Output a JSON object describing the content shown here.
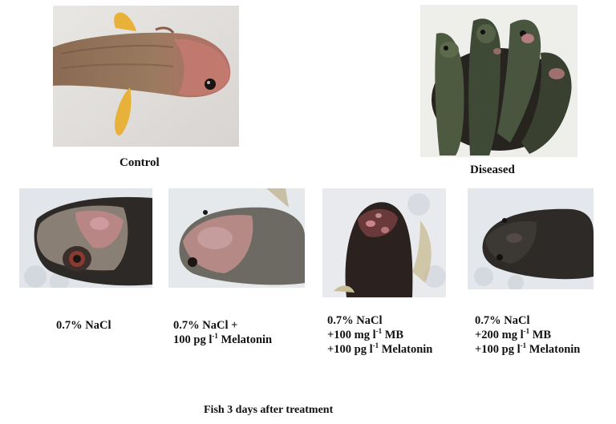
{
  "top": {
    "control": {
      "label": "Control"
    },
    "diseased": {
      "label": "Diseased"
    }
  },
  "treatments": [
    {
      "lines": [
        {
          "pre": "0.7% NaCl",
          "sup": "",
          "post": ""
        }
      ]
    },
    {
      "lines": [
        {
          "pre": "0.7% NaCl +",
          "sup": "",
          "post": ""
        },
        {
          "pre": "100 pg l",
          "sup": "-1",
          "post": " Melatonin"
        }
      ]
    },
    {
      "lines": [
        {
          "pre": "0.7% NaCl",
          "sup": "",
          "post": ""
        },
        {
          "pre": "+100 mg l",
          "sup": "-1",
          "post": " MB"
        },
        {
          "pre": "+100 pg l",
          "sup": "-1",
          "post": " Melatonin"
        }
      ]
    },
    {
      "lines": [
        {
          "pre": "0.7% NaCl",
          "sup": "",
          "post": ""
        },
        {
          "pre": "+200 mg l",
          "sup": "-1",
          "post": " MB"
        },
        {
          "pre": "+100 pg l",
          "sup": "-1",
          "post": " Melatonin"
        }
      ]
    }
  ],
  "caption": "Fish 3 days after treatment",
  "colors": {
    "background": "#ffffff",
    "text": "#111111",
    "fish_dark": "#2a2622",
    "lesion": "#c9868a"
  }
}
